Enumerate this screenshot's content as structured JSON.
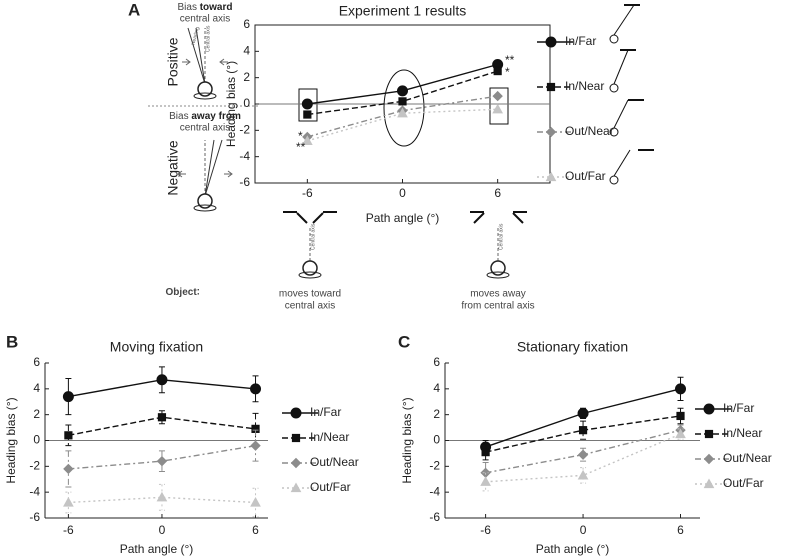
{
  "chart_data": [
    {
      "type": "line",
      "panel": "A",
      "title": "Experiment 1 results",
      "x_label": "Path angle (°)",
      "y_label": "Heading bias (°)",
      "x": [
        -6,
        0,
        6
      ],
      "xlim": [
        -9.3,
        9.3
      ],
      "xticks": [
        -6,
        0,
        6
      ],
      "ylim": [
        -6,
        6
      ],
      "yticks": [
        -6,
        -4,
        -2,
        0,
        2,
        4,
        6
      ],
      "hline": 0,
      "series": [
        {
          "name": "In/Far",
          "color": "#111111",
          "marker": "circle",
          "dash": "solid",
          "values": [
            0,
            1,
            3
          ]
        },
        {
          "name": "In/Near",
          "color": "#111111",
          "marker": "square",
          "dash": "dashed",
          "values": [
            -0.8,
            0.2,
            2.5
          ]
        },
        {
          "name": "Out/Near",
          "color": "#8c8c8c",
          "marker": "diamond",
          "dash": "dashdot",
          "values": [
            -2.5,
            -0.5,
            0.6
          ]
        },
        {
          "name": "Out/Far",
          "color": "#c4c4c4",
          "marker": "triangle",
          "dash": "dotted",
          "values": [
            -2.8,
            -0.7,
            -0.4
          ]
        }
      ],
      "annotations": [
        "**",
        "*",
        "*",
        "**"
      ]
    },
    {
      "type": "line",
      "panel": "B",
      "title": "Moving fixation",
      "x_label": "Path angle (°)",
      "y_label": "Heading bias (°)",
      "x": [
        -6,
        0,
        6
      ],
      "xlim": [
        -7.5,
        6.8
      ],
      "xticks": [
        -6,
        0,
        6
      ],
      "ylim": [
        -6,
        6
      ],
      "yticks": [
        -6,
        -4,
        -2,
        0,
        2,
        4,
        6
      ],
      "hline": 0,
      "series": [
        {
          "name": "In/Far",
          "color": "#111111",
          "marker": "circle",
          "dash": "solid",
          "values": [
            3.4,
            4.7,
            4.0
          ],
          "errors": [
            1.4,
            1.0,
            1.0
          ]
        },
        {
          "name": "In/Near",
          "color": "#111111",
          "marker": "square",
          "dash": "dashed",
          "values": [
            0.4,
            1.8,
            0.9
          ],
          "errors": [
            0.8,
            0.5,
            1.2
          ]
        },
        {
          "name": "Out/Near",
          "color": "#8c8c8c",
          "marker": "diamond",
          "dash": "dashdot",
          "values": [
            -2.2,
            -1.6,
            -0.4
          ],
          "errors": [
            1.4,
            0.8,
            1.2
          ]
        },
        {
          "name": "Out/Far",
          "color": "#c4c4c4",
          "marker": "triangle",
          "dash": "dotted",
          "values": [
            -4.8,
            -4.4,
            -4.8
          ],
          "errors": [
            0.8,
            1.0,
            1.1
          ]
        }
      ]
    },
    {
      "type": "line",
      "panel": "C",
      "title": "Stationary fixation",
      "x_label": "Path angle (°)",
      "y_label": "Heading bias (°)",
      "x": [
        -6,
        0,
        6
      ],
      "xlim": [
        -8.5,
        7.2
      ],
      "xticks": [
        -6,
        0,
        6
      ],
      "ylim": [
        -6,
        6
      ],
      "yticks": [
        -6,
        -4,
        -2,
        0,
        2,
        4,
        6
      ],
      "hline": 0,
      "series": [
        {
          "name": "In/Far",
          "color": "#111111",
          "marker": "circle",
          "dash": "solid",
          "values": [
            -0.5,
            2.1,
            4.0
          ],
          "errors": [
            0.5,
            0.4,
            0.9
          ]
        },
        {
          "name": "In/Near",
          "color": "#111111",
          "marker": "square",
          "dash": "dashed",
          "values": [
            -0.9,
            0.8,
            1.9
          ],
          "errors": [
            0.6,
            0.7,
            0.6
          ]
        },
        {
          "name": "Out/Near",
          "color": "#8c8c8c",
          "marker": "diamond",
          "dash": "dashdot",
          "values": [
            -2.5,
            -1.1,
            0.8
          ],
          "errors": [
            0.8,
            0.5,
            0.4
          ]
        },
        {
          "name": "Out/Far",
          "color": "#c4c4c4",
          "marker": "triangle",
          "dash": "dotted",
          "values": [
            -3.2,
            -2.7,
            0.5
          ],
          "errors": [
            0.7,
            0.6,
            0.4
          ]
        }
      ]
    }
  ],
  "diagram": {
    "bias": "Bias",
    "toward": "toward",
    "away": "away from",
    "central_axis": "central axis",
    "positive": "Positive",
    "negative": "Negative",
    "heading": "Heading",
    "axis_label": "Central axis",
    "object": "Object",
    "moves_toward": "moves toward",
    "moves_away": "moves away",
    "from_central_axis": "from central axis"
  }
}
